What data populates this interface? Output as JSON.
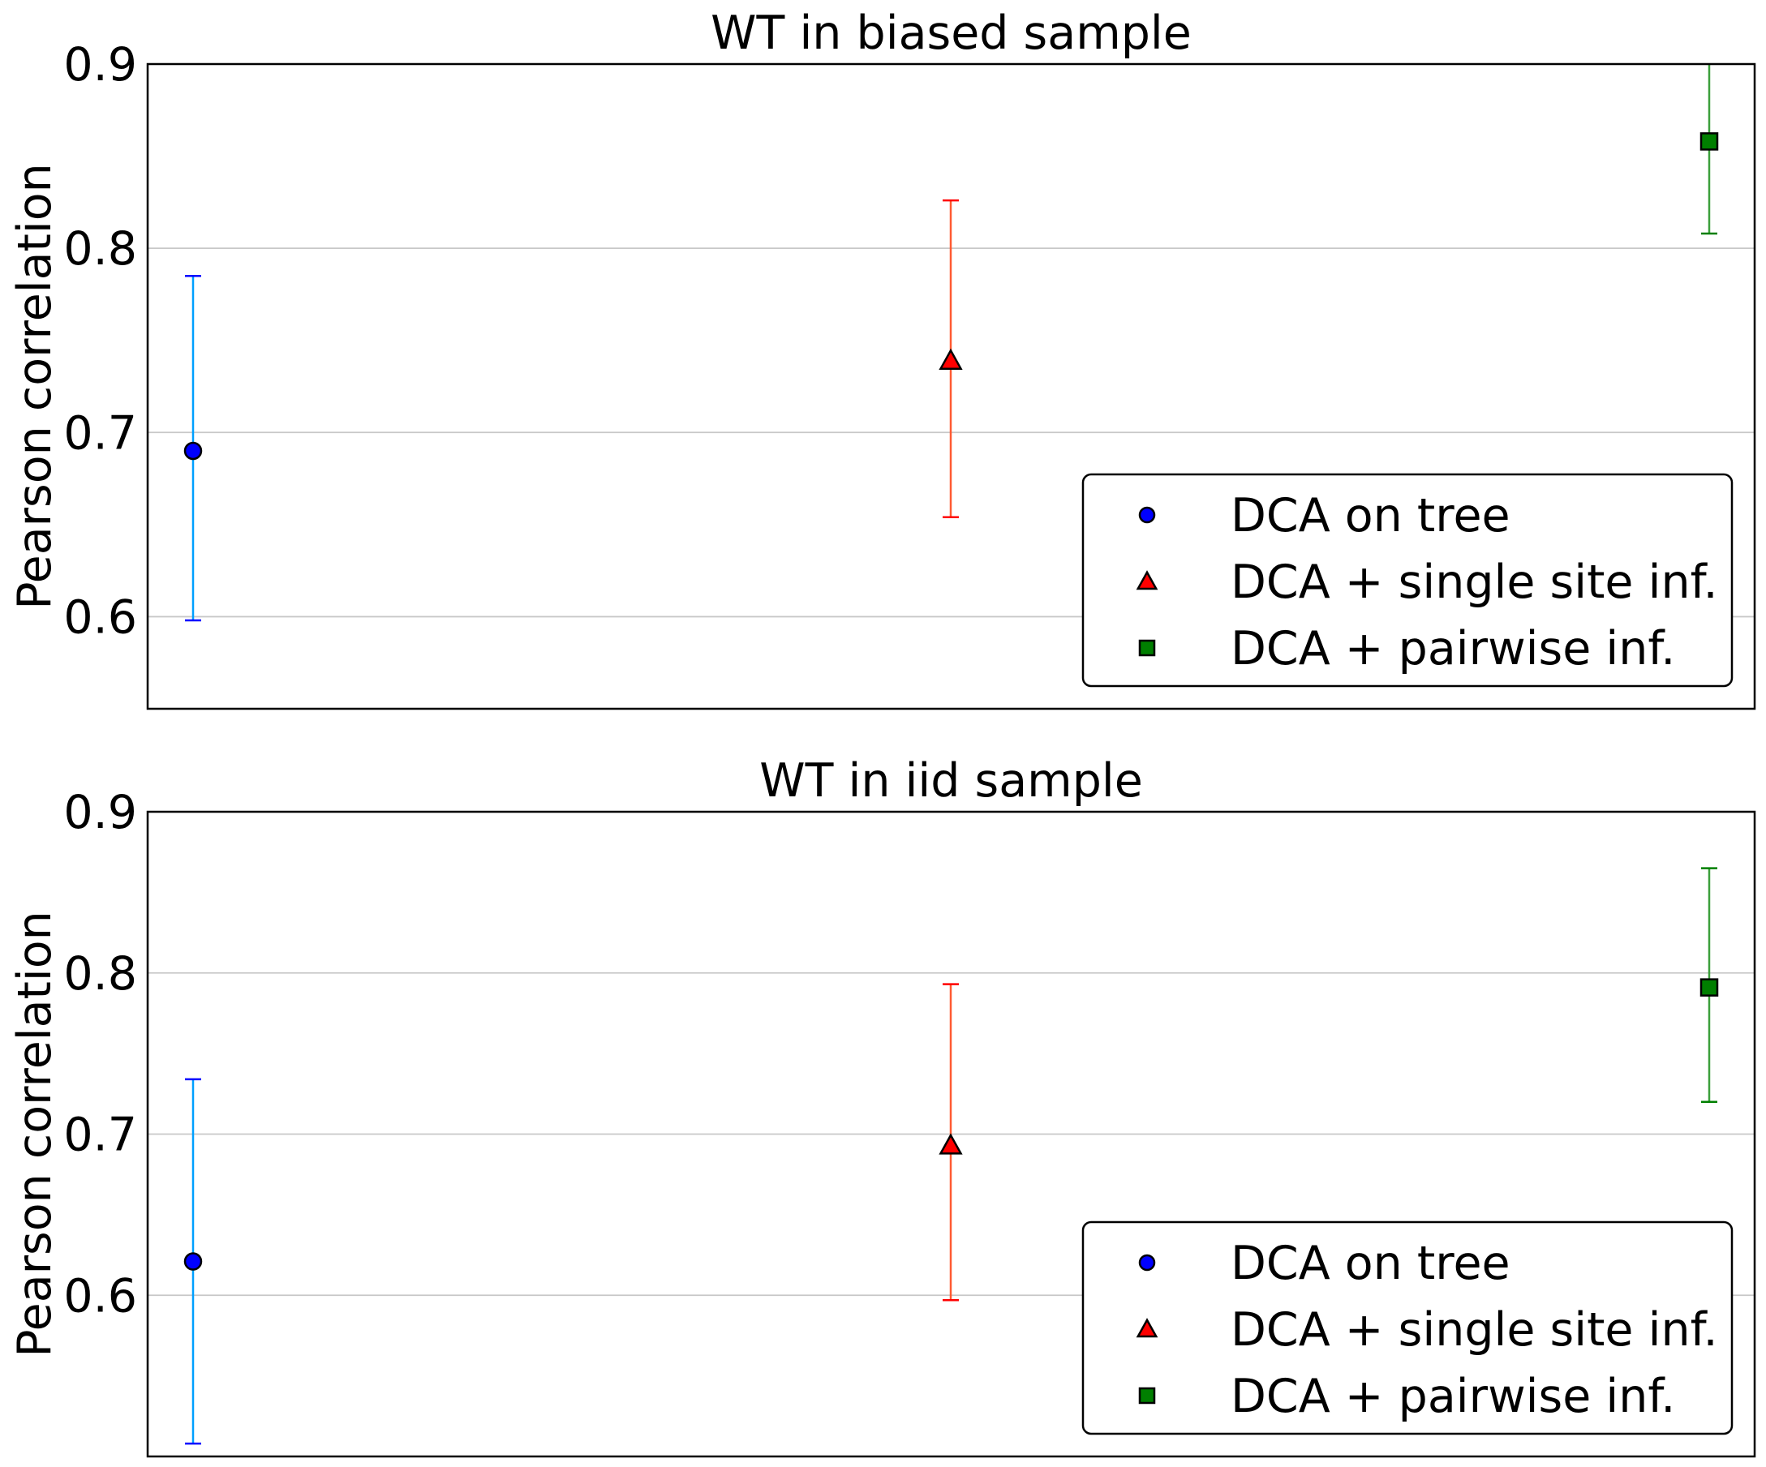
{
  "chart_data": [
    {
      "type": "scatter",
      "title": "WT in biased sample",
      "xlabel": "",
      "ylabel": "Pearson correlation",
      "ylim": [
        0.55,
        0.9
      ],
      "yticks": [
        "0.6",
        "0.7",
        "0.8",
        "0.9"
      ],
      "grid": true,
      "legend_position": "lower-right",
      "series": [
        {
          "name": "DCA on tree",
          "marker": "circle",
          "color": "#0000ff",
          "error_color": "#00a0ff",
          "cap_color": "#0000ff",
          "x": 0,
          "y": 0.69,
          "err_low": 0.598,
          "err_high": 0.785
        },
        {
          "name": "DCA + single site inf.",
          "marker": "triangle",
          "color": "#ff0000",
          "error_color": "#ff5a32",
          "cap_color": "#ff0000",
          "x": 1,
          "y": 0.739,
          "err_low": 0.654,
          "err_high": 0.826
        },
        {
          "name": "DCA + pairwise inf.",
          "marker": "square",
          "color": "#007f00",
          "error_color": "#3ca03c",
          "cap_color": "#007f00",
          "x": 2,
          "y": 0.858,
          "err_low": 0.808,
          "err_high": 0.908
        }
      ]
    },
    {
      "type": "scatter",
      "title": "WT in iid sample",
      "xlabel": "",
      "ylabel": "Pearson correlation",
      "ylim": [
        0.5,
        0.9
      ],
      "yticks": [
        "0.6",
        "0.7",
        "0.8",
        "0.9"
      ],
      "grid": true,
      "legend_position": "lower-right",
      "series": [
        {
          "name": "DCA on tree",
          "marker": "circle",
          "color": "#0000ff",
          "error_color": "#00a0ff",
          "cap_color": "#0000ff",
          "x": 0,
          "y": 0.621,
          "err_low": 0.508,
          "err_high": 0.734
        },
        {
          "name": "DCA + single site inf.",
          "marker": "triangle",
          "color": "#ff0000",
          "error_color": "#ff5a32",
          "cap_color": "#ff0000",
          "x": 1,
          "y": 0.693,
          "err_low": 0.597,
          "err_high": 0.793
        },
        {
          "name": "DCA + pairwise inf.",
          "marker": "square",
          "color": "#007f00",
          "error_color": "#3ca03c",
          "cap_color": "#007f00",
          "x": 2,
          "y": 0.791,
          "err_low": 0.72,
          "err_high": 0.865
        }
      ]
    }
  ]
}
